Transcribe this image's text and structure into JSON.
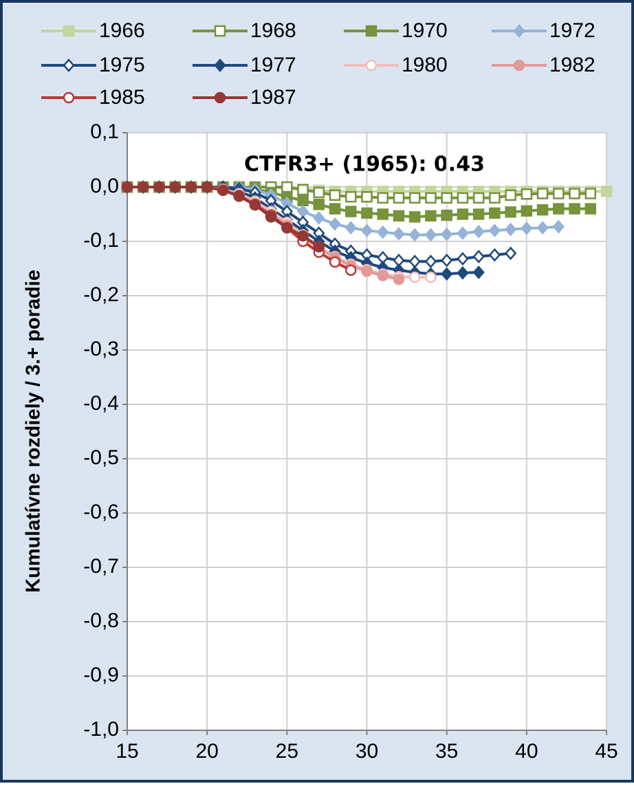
{
  "chart_data": {
    "type": "line",
    "annotation": "CTFR3+ (1965): 0.43",
    "y_label": "Kumulatívne rozdiely / 3.+ poradie",
    "x": [
      15,
      16,
      17,
      18,
      19,
      20,
      21,
      22,
      23,
      24,
      25,
      26,
      27,
      28,
      29,
      30,
      31,
      32,
      33,
      34,
      35,
      36,
      37,
      38,
      39,
      40,
      41,
      42,
      43,
      44,
      45
    ],
    "xlim": [
      15,
      45
    ],
    "xticks": [
      15,
      20,
      25,
      30,
      35,
      40,
      45
    ],
    "ylim": [
      -1.0,
      0.1
    ],
    "yticks": [
      {
        "value": 0.1,
        "label": "0,1"
      },
      {
        "value": 0.0,
        "label": "0,0"
      },
      {
        "value": -0.1,
        "label": "-0,1"
      },
      {
        "value": -0.2,
        "label": "-0,2"
      },
      {
        "value": -0.3,
        "label": "-0,3"
      },
      {
        "value": -0.4,
        "label": "-0,4"
      },
      {
        "value": -0.5,
        "label": "-0,5"
      },
      {
        "value": -0.6,
        "label": "-0,6"
      },
      {
        "value": -0.7,
        "label": "-0,7"
      },
      {
        "value": -0.8,
        "label": "-0,8"
      },
      {
        "value": -0.9,
        "label": "-0,9"
      },
      {
        "value": -1.0,
        "label": "-1,0"
      }
    ],
    "grid": true,
    "legend": "top",
    "series": [
      {
        "name": "1966",
        "color": "#c3d69b",
        "marker": "square",
        "filled": true,
        "values": [
          0,
          0,
          0,
          0,
          0,
          0,
          0,
          0,
          0,
          0,
          -0.002,
          -0.004,
          -0.006,
          -0.008,
          -0.008,
          -0.008,
          -0.008,
          -0.008,
          -0.008,
          -0.008,
          -0.008,
          -0.008,
          -0.008,
          -0.008,
          -0.008,
          -0.008,
          -0.008,
          -0.008,
          -0.008,
          -0.008,
          -0.008
        ]
      },
      {
        "name": "1968",
        "color": "#77933c",
        "marker": "square",
        "filled": false,
        "values": [
          0,
          0,
          0,
          0,
          0,
          0,
          0,
          0,
          0,
          0,
          0,
          -0.005,
          -0.01,
          -0.015,
          -0.018,
          -0.018,
          -0.02,
          -0.02,
          -0.02,
          -0.02,
          -0.02,
          -0.02,
          -0.02,
          -0.02,
          -0.015,
          -0.013,
          -0.012,
          -0.012,
          -0.012,
          -0.012,
          null
        ]
      },
      {
        "name": "1970",
        "color": "#77933c",
        "marker": "square",
        "filled": true,
        "values": [
          0,
          0,
          0,
          0,
          0,
          0,
          0,
          0,
          -0.003,
          -0.01,
          -0.018,
          -0.025,
          -0.032,
          -0.04,
          -0.045,
          -0.048,
          -0.05,
          -0.053,
          -0.055,
          -0.053,
          -0.052,
          -0.05,
          -0.05,
          -0.048,
          -0.046,
          -0.044,
          -0.042,
          -0.04,
          -0.04,
          -0.04,
          null
        ]
      },
      {
        "name": "1972",
        "color": "#95b3d7",
        "marker": "diamond",
        "filled": true,
        "values": [
          0,
          0,
          0,
          0,
          0,
          0,
          0,
          0,
          -0.005,
          -0.015,
          -0.03,
          -0.045,
          -0.057,
          -0.068,
          -0.075,
          -0.08,
          -0.083,
          -0.086,
          -0.088,
          -0.088,
          -0.087,
          -0.085,
          -0.082,
          -0.08,
          -0.078,
          -0.076,
          -0.075,
          -0.073,
          null,
          null,
          null
        ]
      },
      {
        "name": "1975",
        "color": "#1f497d",
        "marker": "diamond",
        "filled": false,
        "values": [
          0,
          0,
          0,
          0,
          0,
          0,
          0,
          -0.003,
          -0.01,
          -0.025,
          -0.045,
          -0.065,
          -0.085,
          -0.105,
          -0.118,
          -0.125,
          -0.13,
          -0.135,
          -0.137,
          -0.137,
          -0.135,
          -0.132,
          -0.128,
          -0.125,
          -0.122,
          null,
          null,
          null,
          null,
          null,
          null
        ]
      },
      {
        "name": "1977",
        "color": "#1f497d",
        "marker": "diamond",
        "filled": true,
        "values": [
          0,
          0,
          0,
          0,
          0,
          0,
          -0.002,
          -0.008,
          -0.02,
          -0.04,
          -0.06,
          -0.08,
          -0.1,
          -0.118,
          -0.13,
          -0.14,
          -0.148,
          -0.153,
          -0.157,
          -0.16,
          -0.16,
          -0.158,
          -0.157,
          null,
          null,
          null,
          null,
          null,
          null,
          null,
          null
        ]
      },
      {
        "name": "1980",
        "color": "#f2bcbb",
        "marker": "circle",
        "filled": false,
        "values": [
          0,
          0,
          0,
          0,
          0,
          0,
          -0.004,
          -0.012,
          -0.026,
          -0.045,
          -0.065,
          -0.088,
          -0.11,
          -0.128,
          -0.142,
          -0.152,
          -0.16,
          -0.165,
          -0.166,
          -0.166,
          null,
          null,
          null,
          null,
          null,
          null,
          null,
          null,
          null,
          null,
          null
        ]
      },
      {
        "name": "1982",
        "color": "#e29a98",
        "marker": "circle",
        "filled": true,
        "values": [
          0,
          0,
          0,
          0,
          0,
          0,
          -0.005,
          -0.015,
          -0.03,
          -0.05,
          -0.07,
          -0.092,
          -0.113,
          -0.13,
          -0.145,
          -0.155,
          -0.163,
          -0.17,
          null,
          null,
          null,
          null,
          null,
          null,
          null,
          null,
          null,
          null,
          null,
          null,
          null
        ]
      },
      {
        "name": "1985",
        "color": "#b83a36",
        "marker": "circle",
        "filled": false,
        "values": [
          0,
          0,
          0,
          0,
          0,
          0,
          -0.006,
          -0.016,
          -0.032,
          -0.052,
          -0.075,
          -0.1,
          -0.12,
          -0.138,
          -0.153,
          null,
          null,
          null,
          null,
          null,
          null,
          null,
          null,
          null,
          null,
          null,
          null,
          null,
          null,
          null,
          null
        ]
      },
      {
        "name": "1987",
        "color": "#953735",
        "marker": "circle",
        "filled": true,
        "values": [
          0,
          0,
          0,
          0,
          0,
          0,
          -0.006,
          -0.017,
          -0.033,
          -0.055,
          -0.075,
          -0.09,
          -0.11,
          null,
          null,
          null,
          null,
          null,
          null,
          null,
          null,
          null,
          null,
          null,
          null,
          null,
          null,
          null,
          null,
          null,
          null
        ]
      }
    ]
  }
}
